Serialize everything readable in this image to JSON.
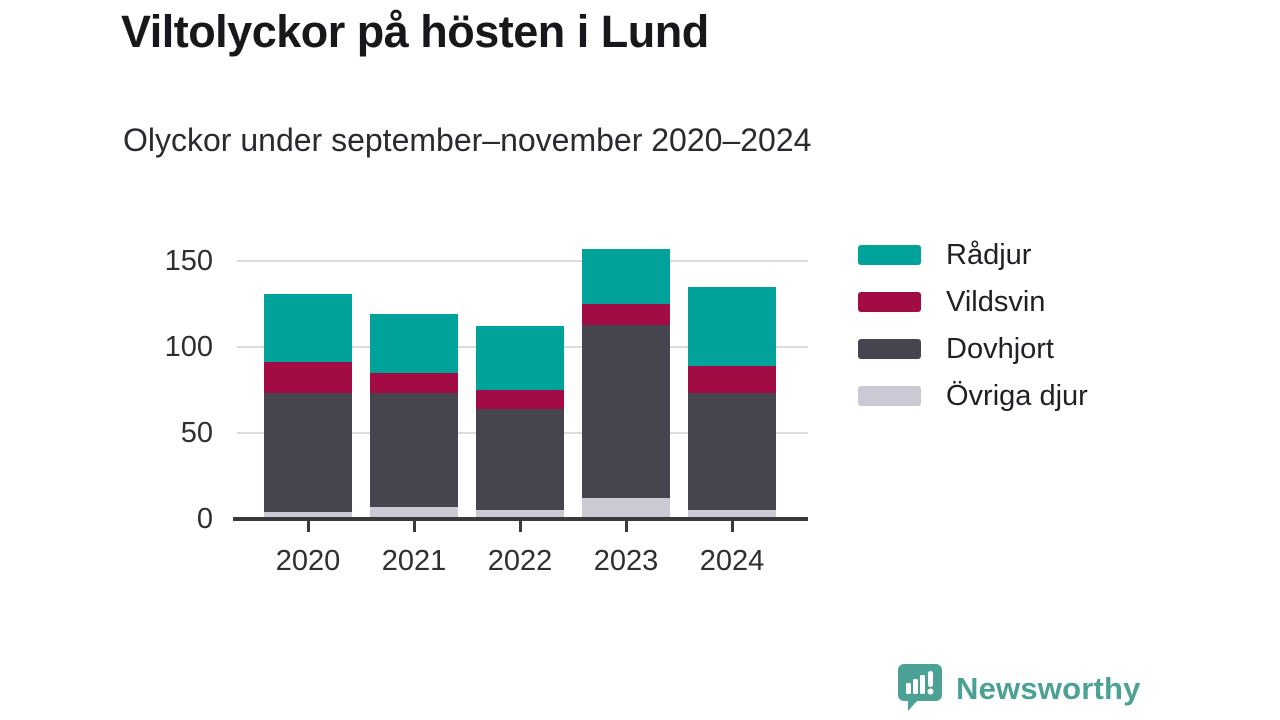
{
  "header": {
    "title": "Viltolyckor på hösten i Lund",
    "subtitle": "Olyckor under september–november 2020–2024"
  },
  "chart_data": {
    "type": "bar",
    "stacked": true,
    "title": "Viltolyckor på hösten i Lund",
    "subtitle": "Olyckor under september–november 2020–2024",
    "categories": [
      "2020",
      "2021",
      "2022",
      "2023",
      "2024"
    ],
    "series": [
      {
        "name": "Rådjur",
        "color": "#00a29a",
        "values": [
          40,
          34,
          37,
          32,
          46
        ]
      },
      {
        "name": "Vildsvin",
        "color": "#a30b45",
        "values": [
          18,
          12,
          11,
          12,
          16
        ]
      },
      {
        "name": "Dovhjort",
        "color": "#46454f",
        "values": [
          69,
          66,
          59,
          101,
          68
        ]
      },
      {
        "name": "Övriga djur",
        "color": "#cbcad4",
        "values": [
          4,
          7,
          5,
          12,
          5
        ]
      }
    ],
    "totals": [
      131,
      119,
      112,
      157,
      135
    ],
    "yticks": [
      0,
      50,
      100,
      150
    ],
    "ylim": [
      0,
      162
    ],
    "xlabel": "",
    "ylabel": "",
    "grid": "horizontal",
    "grid_color": "#dbdbdb",
    "axis_color": "#3a3a3a",
    "legend_position": "right"
  },
  "footer": {
    "brand": "Newsworthy",
    "brand_color": "#4ba294",
    "logo_icon": "bar-chart-speech-bubble-icon"
  }
}
